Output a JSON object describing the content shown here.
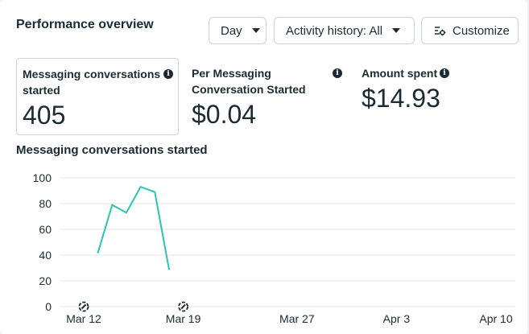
{
  "header": {
    "title": "Performance overview",
    "granularity": "Day",
    "activity_filter": "Activity history: All",
    "customize_label": "Customize"
  },
  "metrics": [
    {
      "label_line1": "Messaging conversations",
      "label_line2": "started",
      "value": "405",
      "info": "i"
    },
    {
      "label_line1": "Per Messaging",
      "label_line2": "Conversation Started",
      "value": "$0.04",
      "info": "i"
    },
    {
      "label_line1": "Amount spent",
      "label_line2": "",
      "value": "$14.93",
      "info": "i"
    }
  ],
  "colors": {
    "line": "#2cc3b5",
    "grid": "#dde1e5",
    "text": "#1c2b33"
  },
  "chart_data": {
    "type": "line",
    "title": "Messaging conversations started",
    "x_ticks": [
      "Mar 12",
      "Mar 19",
      "Mar 27",
      "Apr 3",
      "Apr 10"
    ],
    "y_ticks": [
      0,
      20,
      40,
      60,
      80,
      100
    ],
    "ylim": [
      0,
      100
    ],
    "grid": true,
    "series": [
      {
        "x": [
          "Mar 13",
          "Mar 14",
          "Mar 15",
          "Mar 16",
          "Mar 17",
          "Mar 18"
        ],
        "values": [
          42,
          79,
          73,
          93,
          89,
          29
        ]
      }
    ],
    "annotation_icons": [
      "Mar 12",
      "Mar 19"
    ]
  }
}
